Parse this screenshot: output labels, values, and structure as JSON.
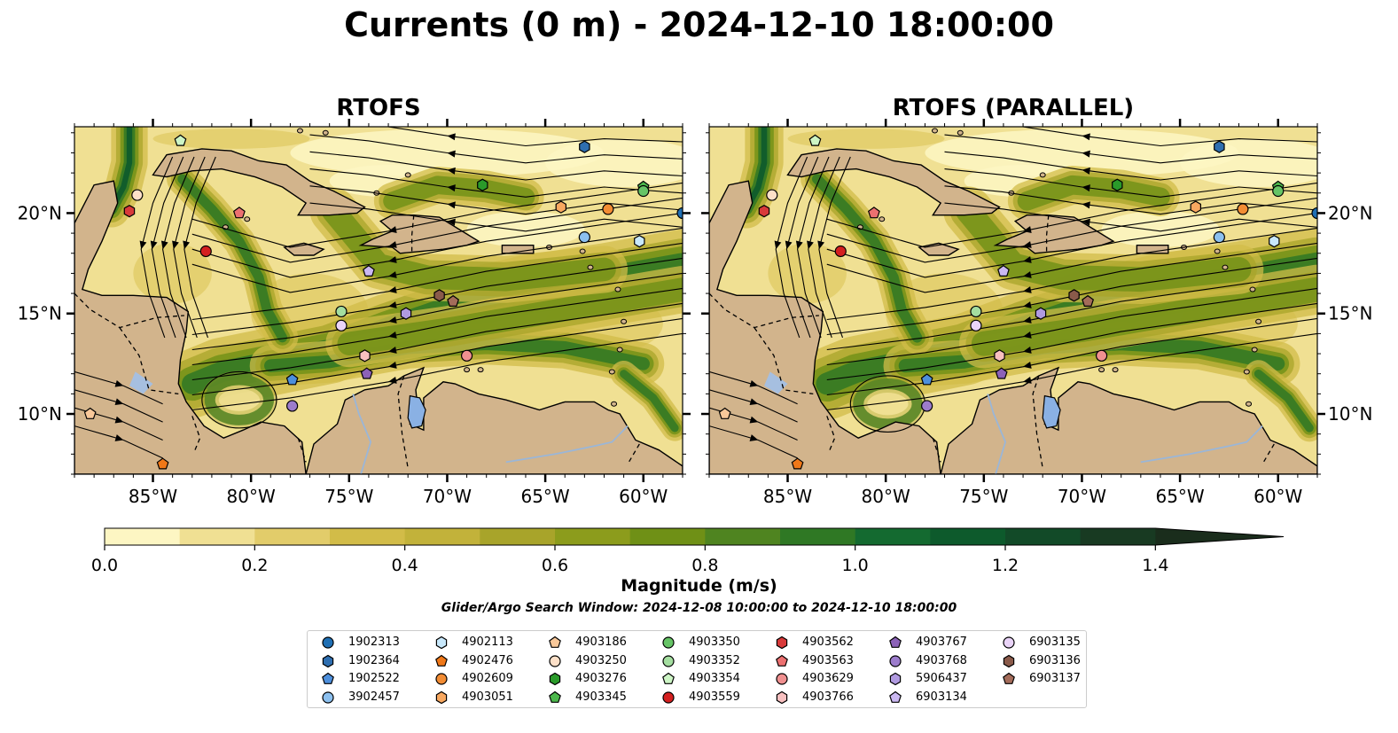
{
  "title": "Currents (0 m) - 2024-12-10 18:00:00",
  "chart_data": {
    "type": "map",
    "panels": [
      {
        "title": "RTOFS"
      },
      {
        "title": "RTOFS (PARALLEL)"
      }
    ],
    "lon_range": [
      -89,
      -58
    ],
    "lat_range": [
      7,
      24.3
    ],
    "x_ticks": [
      {
        "value": -85,
        "label": "85°W"
      },
      {
        "value": -80,
        "label": "80°W"
      },
      {
        "value": -75,
        "label": "75°W"
      },
      {
        "value": -70,
        "label": "70°W"
      },
      {
        "value": -65,
        "label": "65°W"
      },
      {
        "value": -60,
        "label": "60°W"
      }
    ],
    "y_ticks": [
      {
        "value": 10,
        "label": "10°N"
      },
      {
        "value": 15,
        "label": "15°N"
      },
      {
        "value": 20,
        "label": "20°N"
      }
    ],
    "colorbar": {
      "label": "Magnitude (m/s)",
      "range": [
        0,
        1.5
      ],
      "extend": "max",
      "ticks": [
        {
          "value": 0.0,
          "label": "0.0"
        },
        {
          "value": 0.2,
          "label": "0.2"
        },
        {
          "value": 0.4,
          "label": "0.4"
        },
        {
          "value": 0.6,
          "label": "0.6"
        },
        {
          "value": 0.8,
          "label": "0.8"
        },
        {
          "value": 1.0,
          "label": "1.0"
        },
        {
          "value": 1.2,
          "label": "1.2"
        },
        {
          "value": 1.4,
          "label": "1.4"
        }
      ],
      "colors": [
        "#fdf6c3",
        "#f0e093",
        "#e2cc6a",
        "#d2bc48",
        "#c2b23a",
        "#a8a42a",
        "#8c9c1c",
        "#6f9016",
        "#4f8420",
        "#2f7824",
        "#146a30",
        "#0d5a2c",
        "#124a28",
        "#183a22",
        "#1a2d1c"
      ]
    },
    "search_window": "Glider/Argo Search Window: 2024-12-08 10:00:00 to 2024-12-10 18:00:00",
    "floats": [
      {
        "id": "1902313",
        "marker": "circle",
        "color": "#1f6fb4",
        "lon": -58.0,
        "lat": 20.0
      },
      {
        "id": "1902364",
        "marker": "hexagon",
        "color": "#2e6eb0",
        "lon": -63.0,
        "lat": 23.3
      },
      {
        "id": "1902522",
        "marker": "pentagon",
        "color": "#4d8fdc",
        "lon": -77.9,
        "lat": 11.7
      },
      {
        "id": "3902457",
        "marker": "circle",
        "color": "#8cc0ef",
        "lon": -63.0,
        "lat": 18.8
      },
      {
        "id": "4902113",
        "marker": "hexagon",
        "color": "#c8e8fb",
        "lon": -60.2,
        "lat": 18.6
      },
      {
        "id": "4902476",
        "marker": "pentagon",
        "color": "#f07818",
        "lon": -84.5,
        "lat": 7.5
      },
      {
        "id": "4902609",
        "marker": "circle",
        "color": "#f28c34",
        "lon": -61.8,
        "lat": 20.2
      },
      {
        "id": "4903051",
        "marker": "hexagon",
        "color": "#f8a860",
        "lon": -64.2,
        "lat": 20.3
      },
      {
        "id": "4903186",
        "marker": "pentagon",
        "color": "#f8c89a",
        "lon": -88.2,
        "lat": 10.0
      },
      {
        "id": "4903250",
        "marker": "circle",
        "color": "#fde0c8",
        "lon": -85.8,
        "lat": 20.9
      },
      {
        "id": "4903276",
        "marker": "hexagon",
        "color": "#2a9a2a",
        "lon": -68.2,
        "lat": 21.4
      },
      {
        "id": "4903345",
        "marker": "pentagon",
        "color": "#4cb84c",
        "lon": -60.0,
        "lat": 21.3
      },
      {
        "id": "4903350",
        "marker": "circle",
        "color": "#66c466",
        "lon": -60.0,
        "lat": 21.1
      },
      {
        "id": "4903352",
        "marker": "circle",
        "color": "#a4dea0",
        "lon": -75.4,
        "lat": 15.1
      },
      {
        "id": "4903354",
        "marker": "pentagon",
        "color": "#cdf5c5",
        "lon": -83.6,
        "lat": 23.6
      },
      {
        "id": "4903559",
        "marker": "circle",
        "color": "#d42020",
        "lon": -82.3,
        "lat": 18.1
      },
      {
        "id": "4903562",
        "marker": "hexagon",
        "color": "#d83a3a",
        "lon": -86.2,
        "lat": 20.1
      },
      {
        "id": "4903563",
        "marker": "pentagon",
        "color": "#ec7070",
        "lon": -80.6,
        "lat": 20.0
      },
      {
        "id": "4903629",
        "marker": "circle",
        "color": "#f09090",
        "lon": -69.0,
        "lat": 12.9
      },
      {
        "id": "4903766",
        "marker": "hexagon",
        "color": "#f8c0c0",
        "lon": -74.2,
        "lat": 12.9
      },
      {
        "id": "4903767",
        "marker": "pentagon",
        "color": "#8c62b8",
        "lon": -74.1,
        "lat": 12.0
      },
      {
        "id": "4903768",
        "marker": "circle",
        "color": "#9c7ccc",
        "lon": -77.9,
        "lat": 10.4
      },
      {
        "id": "5906437",
        "marker": "hexagon",
        "color": "#b09ae0",
        "lon": -72.1,
        "lat": 15.0
      },
      {
        "id": "6903134",
        "marker": "pentagon",
        "color": "#cbb8f2",
        "lon": -74.0,
        "lat": 17.1
      },
      {
        "id": "6903135",
        "marker": "circle",
        "color": "#ead4f8",
        "lon": -75.4,
        "lat": 14.4
      },
      {
        "id": "6903136",
        "marker": "hexagon",
        "color": "#8a5a4a",
        "lon": -70.4,
        "lat": 15.9
      },
      {
        "id": "6903137",
        "marker": "pentagon",
        "color": "#a46c5a",
        "lon": -69.7,
        "lat": 15.6
      }
    ]
  }
}
